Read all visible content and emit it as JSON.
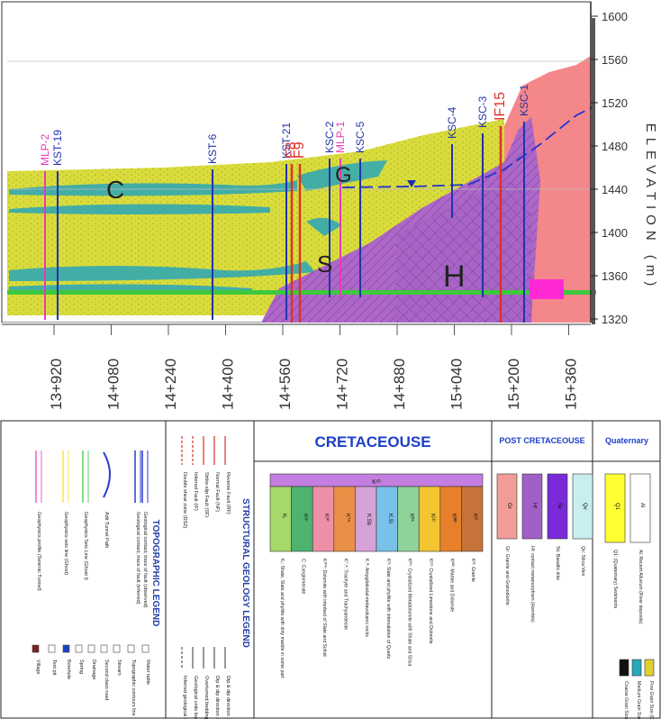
{
  "section": {
    "elevation_label": "ELEVATION (m)",
    "elevation_ticks": [
      "1600",
      "1560",
      "1520",
      "1480",
      "1440",
      "1400",
      "1360",
      "1320"
    ],
    "elevation_values": [
      1600,
      1560,
      1520,
      1480,
      1440,
      1400,
      1360,
      1320
    ],
    "chainage_ticks": [
      "13+920",
      "14+080",
      "14+240",
      "14+400",
      "14+560",
      "14+720",
      "14+880",
      "15+040",
      "15+200",
      "15+360"
    ],
    "boreholes": [
      {
        "name": "MLP-2",
        "color": "#e83ab5"
      },
      {
        "name": "KST-19",
        "color": "#2233aa"
      },
      {
        "name": "KST-6",
        "color": "#2233aa"
      },
      {
        "name": "KST-21",
        "color": "#2233aa"
      },
      {
        "name": "F8",
        "color": "#e0302a"
      },
      {
        "name": "F9",
        "color": "#e0302a"
      },
      {
        "name": "KSC-2",
        "color": "#2233aa"
      },
      {
        "name": "MLP-1",
        "color": "#e83ab5"
      },
      {
        "name": "KSC-5",
        "color": "#2233aa"
      },
      {
        "name": "KSC-4",
        "color": "#2233aa"
      },
      {
        "name": "KSC-3",
        "color": "#2233aa"
      },
      {
        "name": "IF15",
        "color": "#e0302a"
      },
      {
        "name": "KSC-1",
        "color": "#2233aa"
      }
    ],
    "unit_labels": {
      "c": "C",
      "s": "S",
      "g_left": "G",
      "h": "H"
    },
    "colors": {
      "yellow_unit": "#d8dc3a",
      "purple_unit": "#a866c8",
      "pink_unit": "#f28a8a",
      "green_line": "#3cc93c",
      "teal": "#2aa7b8"
    }
  },
  "legend": {
    "topographic_title": "TOPOGRAPHIC LEGEND",
    "topo_items": [
      "Geological contact, trace of fault (observed)",
      "Geological contact, trace of fault (inferred)",
      "Adit Tunnel Path",
      "Geophysics Seis Line (Ghost I)",
      "Geophysics seis line (Ghost)",
      "Geophysics profile (Seismic Tunnel)"
    ],
    "topo_items_right": [
      "Water table",
      "Topographic contours line",
      "Stream",
      "Second class road",
      "Drainage",
      "Spring",
      "Borehole",
      "Test pit",
      "Village"
    ],
    "structural_title": "STRUCTURAL GEOLOGY LEGEND",
    "structural_items": [
      "Reverse Fault (RF)",
      "Normal Fault (NF)",
      "Strike-slip Fault (SF)",
      "Inferred Fault (IF)",
      "Double shear zone (DSZ)"
    ],
    "structural_items_right": [
      "Dip & dip direction of bedding",
      "Dip & dip direction of foliation",
      "Overturned bedding",
      "Geological units boundary",
      "Inferred geological units boundary"
    ],
    "cretaceous_title": "CRETACEOUSE",
    "cretaceous_units": [
      {
        "code": "Kᵣ",
        "color": "#a7d86a",
        "desc": "Kᵣ: Shale, Slate and phyllite with dirty marble in some part"
      },
      {
        "code": "Kᶜᵖ",
        "color": "#4fb370",
        "desc": "C: Conglomerate"
      },
      {
        "code": "Kˢᴾ",
        "color": "#ee8fa8",
        "desc": "Kˢᴾᴬ: Dolomite with interbed of Slate and Schist"
      },
      {
        "code": "Kᵀᴬ",
        "color": "#e99046",
        "desc": "Kᵀ.ᴬ: Trachyte and Trachyandesite"
      },
      {
        "code": "K.Sb",
        "color": "#d6a3d8",
        "desc": "K.ᴬ: Amygdaloidal-metavolcanic rocks"
      },
      {
        "code": "K.Si",
        "color": "#7ac1ea",
        "desc": "Kˢᴵ: Slate and phyllite with intercalation of Quartz"
      },
      {
        "code": "Kᴰᶜ",
        "color": "#8fd39b",
        "desc": "Kᴰᶜ: Crystallized Metadolomite with Shale and Silica"
      },
      {
        "code": "Kᴸᴰ",
        "color": "#f4c431",
        "desc": "Kᴸᴰ: Crystallized Limestone and Dolomite"
      },
      {
        "code": "Kᴹᴰ",
        "color": "#e87f2a",
        "desc": "Kᴹᴰ: Marble and Dolomite"
      },
      {
        "code": "Kᴳ",
        "color": "#c6733a",
        "desc": "Kᴳ: Granite"
      }
    ],
    "top_bar_code": "Kˢᵇ",
    "post_title": "POST CRETACEOUSE",
    "post_units": [
      {
        "code": "Gr",
        "color": "#f29c98",
        "desc": "Gr: Granite and Granodiorite"
      },
      {
        "code": "Hf",
        "color": "#a160c8",
        "desc": "Hf: contact metamorphism (Hornfels)"
      },
      {
        "code": "Sk",
        "color": "#7a2ad8",
        "desc": "Sk: Basaltic dike"
      },
      {
        "code": "Qv",
        "color": "#c9eef0",
        "desc": "Qv: Silica Vein"
      }
    ],
    "quaternary_title": "Quaternary",
    "quat_units": [
      {
        "code": "Q1",
        "color": "#ffff33",
        "desc": "Q1: (Quaternary) Sediments"
      },
      {
        "code": "Al",
        "color": "#ffffff",
        "desc": "Al: Recent Alluvium (River deposits)"
      }
    ],
    "grain_labels": [
      "Fine Grain Size (CSF)",
      "Medium Grain Size (M)",
      "Coarse Grain Size (C)"
    ]
  }
}
